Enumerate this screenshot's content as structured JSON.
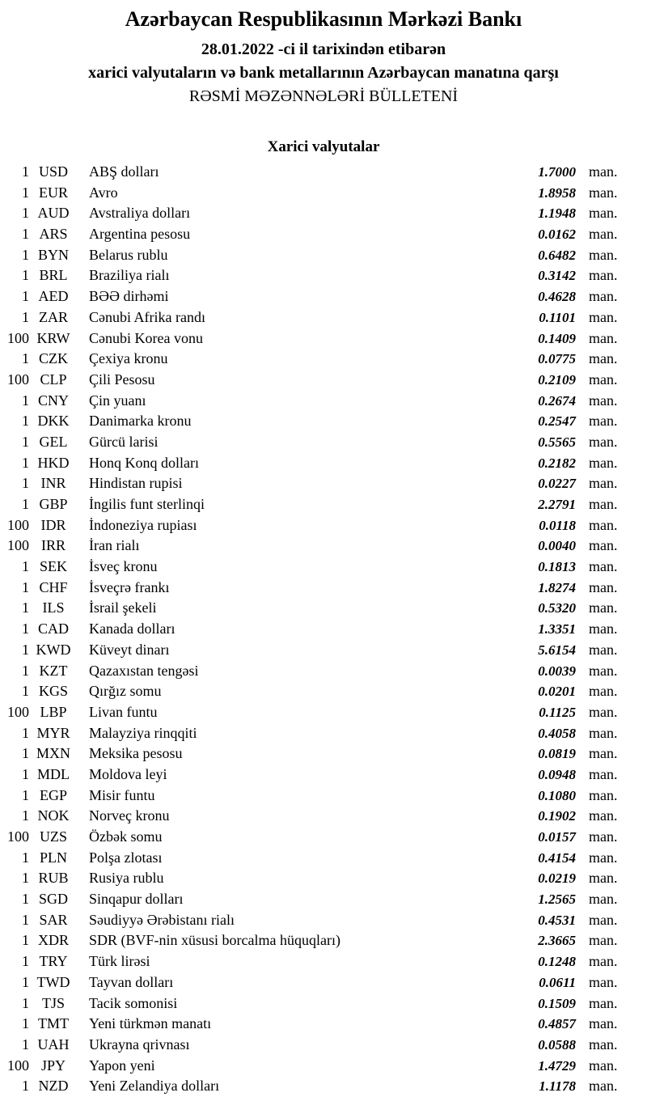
{
  "header": {
    "title": "Azərbaycan Respublikasının Mərkəzi Bankı",
    "date_line": "28.01.2022 -ci il tarixindən etibarən",
    "subject_line": "xarici valyutaların və bank metallarının Azərbaycan manatına qarşı",
    "bulletin_line": "RƏSMİ MƏZƏNNƏLƏRİ BÜLLETENİ"
  },
  "section": {
    "title": "Xarici valyutalar"
  },
  "unit_suffix": "man.",
  "rates": [
    {
      "qty": "1",
      "code": "USD",
      "name": "ABŞ dolları",
      "rate": "1.7000"
    },
    {
      "qty": "1",
      "code": "EUR",
      "name": "Avro",
      "rate": "1.8958"
    },
    {
      "qty": "1",
      "code": "AUD",
      "name": "Avstraliya dolları",
      "rate": "1.1948"
    },
    {
      "qty": "1",
      "code": "ARS",
      "name": "Argentina pesosu",
      "rate": "0.0162"
    },
    {
      "qty": "1",
      "code": "BYN",
      "name": "Belarus rublu",
      "rate": "0.6482"
    },
    {
      "qty": "1",
      "code": "BRL",
      "name": "Braziliya rialı",
      "rate": "0.3142"
    },
    {
      "qty": "1",
      "code": "AED",
      "name": "BƏƏ dirhəmi",
      "rate": "0.4628"
    },
    {
      "qty": "1",
      "code": "ZAR",
      "name": "Cənubi Afrika randı",
      "rate": "0.1101"
    },
    {
      "qty": "100",
      "code": "KRW",
      "name": "Cənubi Korea vonu",
      "rate": "0.1409"
    },
    {
      "qty": "1",
      "code": "CZK",
      "name": "Çexiya kronu",
      "rate": "0.0775"
    },
    {
      "qty": "100",
      "code": "CLP",
      "name": "Çili Pesosu",
      "rate": "0.2109"
    },
    {
      "qty": "1",
      "code": "CNY",
      "name": "Çin yuanı",
      "rate": "0.2674"
    },
    {
      "qty": "1",
      "code": "DKK",
      "name": "Danimarka kronu",
      "rate": "0.2547"
    },
    {
      "qty": "1",
      "code": "GEL",
      "name": "Gürcü larisi",
      "rate": "0.5565"
    },
    {
      "qty": "1",
      "code": "HKD",
      "name": "Honq Konq dolları",
      "rate": "0.2182"
    },
    {
      "qty": "1",
      "code": "INR",
      "name": "Hindistan rupisi",
      "rate": "0.0227"
    },
    {
      "qty": "1",
      "code": "GBP",
      "name": "İngilis funt sterlinqi",
      "rate": "2.2791"
    },
    {
      "qty": "100",
      "code": "IDR",
      "name": "İndoneziya rupiası",
      "rate": "0.0118"
    },
    {
      "qty": "100",
      "code": "IRR",
      "name": "İran rialı",
      "rate": "0.0040"
    },
    {
      "qty": "1",
      "code": "SEK",
      "name": "İsveç kronu",
      "rate": "0.1813"
    },
    {
      "qty": "1",
      "code": "CHF",
      "name": "İsveçrə frankı",
      "rate": "1.8274"
    },
    {
      "qty": "1",
      "code": "ILS",
      "name": "İsrail şekeli",
      "rate": "0.5320"
    },
    {
      "qty": "1",
      "code": "CAD",
      "name": "Kanada dolları",
      "rate": "1.3351"
    },
    {
      "qty": "1",
      "code": "KWD",
      "name": "Küveyt dinarı",
      "rate": "5.6154"
    },
    {
      "qty": "1",
      "code": "KZT",
      "name": "Qazaxıstan tengəsi",
      "rate": "0.0039"
    },
    {
      "qty": "1",
      "code": "KGS",
      "name": "Qırğız somu",
      "rate": "0.0201"
    },
    {
      "qty": "100",
      "code": "LBP",
      "name": "Livan funtu",
      "rate": "0.1125"
    },
    {
      "qty": "1",
      "code": "MYR",
      "name": "Malayziya rinqqiti",
      "rate": "0.4058"
    },
    {
      "qty": "1",
      "code": "MXN",
      "name": "Meksika pesosu",
      "rate": "0.0819"
    },
    {
      "qty": "1",
      "code": "MDL",
      "name": "Moldova leyi",
      "rate": "0.0948"
    },
    {
      "qty": "1",
      "code": "EGP",
      "name": "Misir funtu",
      "rate": "0.1080"
    },
    {
      "qty": "1",
      "code": "NOK",
      "name": "Norveç kronu",
      "rate": "0.1902"
    },
    {
      "qty": "100",
      "code": "UZS",
      "name": "Özbək somu",
      "rate": "0.0157"
    },
    {
      "qty": "1",
      "code": "PLN",
      "name": "Polşa zlotası",
      "rate": "0.4154"
    },
    {
      "qty": "1",
      "code": "RUB",
      "name": "Rusiya rublu",
      "rate": "0.0219"
    },
    {
      "qty": "1",
      "code": "SGD",
      "name": "Sinqapur dolları",
      "rate": "1.2565"
    },
    {
      "qty": "1",
      "code": "SAR",
      "name": "Səudiyyə Ərəbistanı rialı",
      "rate": "0.4531"
    },
    {
      "qty": "1",
      "code": "XDR",
      "name": "SDR (BVF-nin xüsusi borcalma hüquqları)",
      "rate": "2.3665"
    },
    {
      "qty": "1",
      "code": "TRY",
      "name": "Türk lirəsi",
      "rate": "0.1248"
    },
    {
      "qty": "1",
      "code": "TWD",
      "name": "Tayvan dolları",
      "rate": "0.0611"
    },
    {
      "qty": "1",
      "code": "TJS",
      "name": "Tacik somonisi",
      "rate": "0.1509"
    },
    {
      "qty": "1",
      "code": "TMT",
      "name": "Yeni türkmən manatı",
      "rate": "0.4857"
    },
    {
      "qty": "1",
      "code": "UAH",
      "name": "Ukrayna qrivnası",
      "rate": "0.0588"
    },
    {
      "qty": "100",
      "code": "JPY",
      "name": "Yapon yeni",
      "rate": "1.4729"
    },
    {
      "qty": "1",
      "code": "NZD",
      "name": "Yeni Zelandiya dolları",
      "rate": "1.1178"
    }
  ]
}
